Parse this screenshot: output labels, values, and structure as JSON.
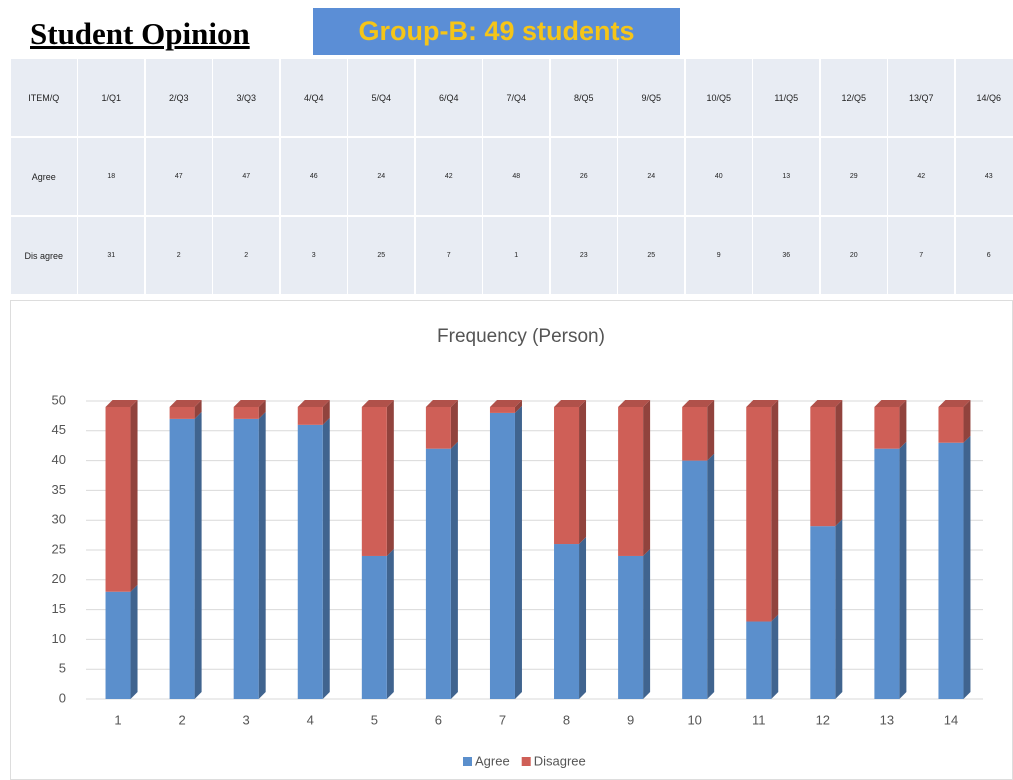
{
  "header": {
    "title": "Student Opinion",
    "badge": "Group-B: 49 students"
  },
  "table": {
    "rows": [
      [
        "ITEM/Q",
        "1/Q1",
        "2/Q3",
        "3/Q3",
        "4/Q4",
        "5/Q4",
        "6/Q4",
        "7/Q4",
        "8/Q5",
        "9/Q5",
        "10/Q5",
        "11/Q5",
        "12/Q5",
        "13/Q7",
        "14/Q6"
      ],
      [
        "Agree",
        "18",
        "47",
        "47",
        "46",
        "24",
        "42",
        "48",
        "26",
        "24",
        "40",
        "13",
        "29",
        "42",
        "43"
      ],
      [
        "Dis agree",
        "31",
        "2",
        "2",
        "3",
        "25",
        "7",
        "1",
        "23",
        "25",
        "9",
        "36",
        "20",
        "7",
        "6"
      ]
    ]
  },
  "chart_data": {
    "type": "bar",
    "stacked": true,
    "title": "Frequency (Person)",
    "categories": [
      "1",
      "2",
      "3",
      "4",
      "5",
      "6",
      "7",
      "8",
      "9",
      "10",
      "11",
      "12",
      "13",
      "14"
    ],
    "series": [
      {
        "name": "Agree",
        "color": "#5b8fcc",
        "values": [
          18,
          47,
          47,
          46,
          24,
          42,
          48,
          26,
          24,
          40,
          13,
          29,
          42,
          43
        ]
      },
      {
        "name": "Disagree",
        "color": "#cf5f57",
        "values": [
          31,
          2,
          2,
          3,
          25,
          7,
          1,
          23,
          25,
          9,
          36,
          20,
          7,
          6
        ]
      }
    ],
    "ylim": [
      0,
      50
    ],
    "yticks": [
      0,
      5,
      10,
      15,
      20,
      25,
      30,
      35,
      40,
      45,
      50
    ],
    "grid": true,
    "legend": "bottom"
  }
}
